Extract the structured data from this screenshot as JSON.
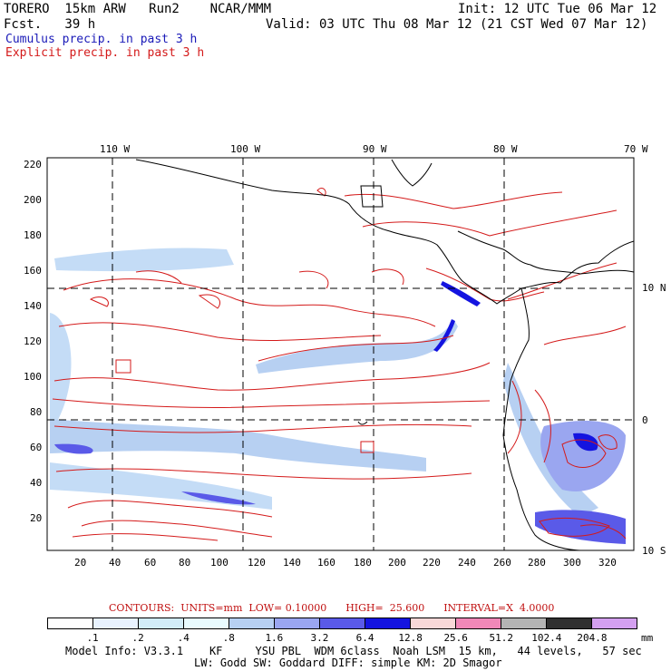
{
  "header": {
    "model": "TORERO  15km ARW   Run2    NCAR/MMM",
    "init": "Init: 12 UTC Tue 06 Mar 12",
    "fcst": "Fcst.   39 h",
    "valid": "Valid: 03 UTC Thu 08 Mar 12 (21 CST Wed 07 Mar 12)"
  },
  "legend": {
    "cumulus": "Cumulus precip. in past 3 h",
    "explicit": "Explicit precip. in past 3 h"
  },
  "axes": {
    "top_lon": [
      "110 W",
      "100 W",
      "90 W",
      "80 W",
      "70 W"
    ],
    "right_lat": [
      "10 N",
      "0",
      "10 S"
    ],
    "left_y": [
      "220",
      "200",
      "180",
      "160",
      "140",
      "120",
      "100",
      "80",
      "60",
      "40",
      "20"
    ],
    "bottom_x": [
      "20",
      "40",
      "60",
      "80",
      "100",
      "120",
      "140",
      "160",
      "180",
      "200",
      "220",
      "240",
      "260",
      "280",
      "300",
      "320"
    ]
  },
  "contours_info": {
    "label": "CONTOURS:  UNITS=mm  LOW= 0.10000      HIGH=  25.600      INTERVAL=X  4.0000"
  },
  "colorbar": {
    "colors": [
      "#ffffff",
      "#e8f2ff",
      "#d2ecf8",
      "#e8fbff",
      "#b7d0f2",
      "#9aa6f0",
      "#5a5ae8",
      "#1414e0",
      "#f8d8d8",
      "#f088b8",
      "#b4b4b4",
      "#303030",
      "#d4a0f0"
    ],
    "labels": [
      ".1",
      ".2",
      ".4",
      ".8",
      "1.6",
      "3.2",
      "6.4",
      "12.8",
      "25.6",
      "51.2",
      "102.4",
      "204.8"
    ],
    "units": "mm"
  },
  "footer": {
    "line1": "Model Info: V3.3.1    KF     YSU PBL  WDM 6class  Noah LSM  15 km,   44 levels,   57 sec",
    "line2": "LW: Godd SW: Goddard DIFF: simple KM: 2D Smagor"
  }
}
